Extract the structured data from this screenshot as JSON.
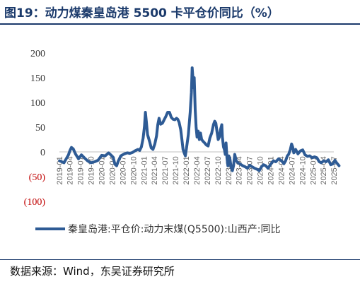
{
  "title": "图19：动力煤秦皇岛港 5500 卡平仓价同比（%）",
  "source": "数据来源：Wind，东吴证券研究所",
  "colors": {
    "series": "#2e5b95",
    "title": "#1b3a6b",
    "negative_tick": "#c00000"
  },
  "chart_data": {
    "type": "line",
    "ylim": [
      -100,
      200
    ],
    "yticks": [
      200,
      150,
      100,
      50,
      0,
      -50,
      -100
    ],
    "ytick_labels": [
      "200",
      "150",
      "100",
      "50",
      "0",
      "(50)",
      "(100)"
    ],
    "xticks": [
      "2019-01",
      "2019-04",
      "2019-07",
      "2019-10",
      "2020-01",
      "2020-04",
      "2020-07",
      "2020-10",
      "2021-01",
      "2021-04",
      "2021-07",
      "2021-10",
      "2022-01",
      "2022-04",
      "2022-07",
      "2022-10",
      "2023-01",
      "2023-04",
      "2023-07",
      "2023-10",
      "2024-01",
      "2024-04",
      "2024-07",
      "2024-10",
      "2025-01",
      "2025-04",
      "2025-07"
    ],
    "legend_position": "bottom",
    "series": [
      {
        "name": "秦皇岛港:平仓价:动力末煤(Q5500):山西产:同比",
        "points": [
          [
            "2019-01-02",
            -18
          ],
          [
            "2019-02-10",
            -22
          ],
          [
            "2019-03-01",
            -14
          ],
          [
            "2019-03-20",
            -6
          ],
          [
            "2019-04-01",
            2
          ],
          [
            "2019-04-15",
            9
          ],
          [
            "2019-05-01",
            6
          ],
          [
            "2019-05-20",
            -4
          ],
          [
            "2019-06-15",
            -14
          ],
          [
            "2019-07-10",
            -6
          ],
          [
            "2019-08-05",
            -12
          ],
          [
            "2019-09-01",
            -18
          ],
          [
            "2019-10-01",
            -22
          ],
          [
            "2019-11-01",
            -20
          ],
          [
            "2019-12-01",
            -17
          ],
          [
            "2020-01-01",
            -7
          ],
          [
            "2020-02-01",
            -8
          ],
          [
            "2020-03-01",
            -2
          ],
          [
            "2020-03-20",
            -6
          ],
          [
            "2020-04-10",
            -11
          ],
          [
            "2020-04-25",
            -25
          ],
          [
            "2020-05-10",
            -28
          ],
          [
            "2020-05-25",
            -18
          ],
          [
            "2020-06-15",
            -8
          ],
          [
            "2020-07-15",
            -4
          ],
          [
            "2020-08-10",
            -2
          ],
          [
            "2020-09-01",
            -3
          ],
          [
            "2020-09-25",
            -1
          ],
          [
            "2020-10-15",
            2
          ],
          [
            "2020-11-10",
            5
          ],
          [
            "2020-11-25",
            3
          ],
          [
            "2020-12-10",
            10
          ],
          [
            "2020-12-25",
            28
          ],
          [
            "2021-01-06",
            52
          ],
          [
            "2021-01-14",
            80
          ],
          [
            "2021-01-22",
            60
          ],
          [
            "2021-02-01",
            35
          ],
          [
            "2021-02-20",
            20
          ],
          [
            "2021-03-05",
            8
          ],
          [
            "2021-03-20",
            5
          ],
          [
            "2021-04-05",
            16
          ],
          [
            "2021-04-20",
            32
          ],
          [
            "2021-05-01",
            55
          ],
          [
            "2021-05-12",
            68
          ],
          [
            "2021-05-25",
            56
          ],
          [
            "2021-06-10",
            58
          ],
          [
            "2021-06-25",
            65
          ],
          [
            "2021-07-10",
            72
          ],
          [
            "2021-07-25",
            80
          ],
          [
            "2021-08-10",
            80
          ],
          [
            "2021-08-25",
            70
          ],
          [
            "2021-09-10",
            66
          ],
          [
            "2021-09-25",
            65
          ],
          [
            "2021-10-10",
            68
          ],
          [
            "2021-10-20",
            66
          ],
          [
            "2021-11-01",
            60
          ],
          [
            "2021-11-15",
            45
          ],
          [
            "2021-11-25",
            25
          ],
          [
            "2021-12-05",
            5
          ],
          [
            "2021-12-15",
            -2
          ],
          [
            "2021-12-25",
            -8
          ],
          [
            "2022-01-05",
            10
          ],
          [
            "2022-01-20",
            35
          ],
          [
            "2022-02-05",
            80
          ],
          [
            "2022-02-15",
            120
          ],
          [
            "2022-02-22",
            170
          ],
          [
            "2022-02-27",
            155
          ],
          [
            "2022-03-05",
            130
          ],
          [
            "2022-03-12",
            150
          ],
          [
            "2022-03-20",
            85
          ],
          [
            "2022-03-28",
            50
          ],
          [
            "2022-04-05",
            30
          ],
          [
            "2022-04-15",
            42
          ],
          [
            "2022-04-25",
            25
          ],
          [
            "2022-05-05",
            38
          ],
          [
            "2022-05-15",
            25
          ],
          [
            "2022-05-25",
            22
          ],
          [
            "2022-06-10",
            18
          ],
          [
            "2022-06-25",
            14
          ],
          [
            "2022-07-10",
            12
          ],
          [
            "2022-07-25",
            28
          ],
          [
            "2022-08-10",
            38
          ],
          [
            "2022-08-25",
            55
          ],
          [
            "2022-09-05",
            62
          ],
          [
            "2022-09-15",
            58
          ],
          [
            "2022-09-25",
            40
          ],
          [
            "2022-10-05",
            25
          ],
          [
            "2022-10-15",
            30
          ],
          [
            "2022-10-25",
            45
          ],
          [
            "2022-11-05",
            55
          ],
          [
            "2022-11-10",
            30
          ],
          [
            "2022-11-20",
            10
          ],
          [
            "2022-11-28",
            5
          ],
          [
            "2022-12-05",
            -5
          ],
          [
            "2022-12-12",
            18
          ],
          [
            "2022-12-20",
            -12
          ],
          [
            "2022-12-28",
            -28
          ],
          [
            "2023-01-05",
            -8
          ],
          [
            "2023-01-15",
            -15
          ],
          [
            "2023-01-25",
            -32
          ],
          [
            "2023-02-05",
            -38
          ],
          [
            "2023-02-15",
            -28
          ],
          [
            "2023-02-25",
            -5
          ],
          [
            "2023-03-10",
            -18
          ],
          [
            "2023-03-25",
            -22
          ],
          [
            "2023-04-15",
            -25
          ],
          [
            "2023-05-05",
            -28
          ],
          [
            "2023-05-25",
            -30
          ],
          [
            "2023-06-15",
            -33
          ],
          [
            "2023-07-05",
            -27
          ],
          [
            "2023-07-25",
            -30
          ],
          [
            "2023-08-15",
            -33
          ],
          [
            "2023-09-05",
            -35
          ],
          [
            "2023-09-25",
            -38
          ],
          [
            "2023-10-15",
            -30
          ],
          [
            "2023-11-01",
            -26
          ],
          [
            "2023-11-20",
            -28
          ],
          [
            "2023-12-10",
            -33
          ],
          [
            "2024-01-05",
            -24
          ],
          [
            "2024-01-25",
            -18
          ],
          [
            "2024-02-15",
            -20
          ],
          [
            "2024-03-10",
            -14
          ],
          [
            "2024-04-05",
            -18
          ],
          [
            "2024-04-25",
            -24
          ],
          [
            "2024-05-10",
            -18
          ],
          [
            "2024-05-25",
            -8
          ],
          [
            "2024-06-05",
            -5
          ],
          [
            "2024-06-20",
            5
          ],
          [
            "2024-07-01",
            16
          ],
          [
            "2024-07-10",
            10
          ],
          [
            "2024-07-20",
            -2
          ],
          [
            "2024-08-05",
            5
          ],
          [
            "2024-08-25",
            -4
          ],
          [
            "2024-09-15",
            2
          ],
          [
            "2024-10-05",
            4
          ],
          [
            "2024-10-25",
            -6
          ],
          [
            "2024-11-15",
            -9
          ],
          [
            "2024-12-05",
            -8
          ],
          [
            "2024-12-25",
            -12
          ],
          [
            "2025-01-15",
            -10
          ],
          [
            "2025-02-05",
            -12
          ],
          [
            "2025-02-25",
            -20
          ],
          [
            "2025-03-15",
            -22
          ],
          [
            "2025-04-05",
            -18
          ],
          [
            "2025-04-25",
            -20
          ],
          [
            "2025-05-15",
            -16
          ],
          [
            "2025-06-05",
            -26
          ],
          [
            "2025-06-25",
            -24
          ],
          [
            "2025-07-10",
            -17
          ],
          [
            "2025-07-25",
            -22
          ],
          [
            "2025-08-15",
            -28
          ]
        ]
      }
    ]
  }
}
